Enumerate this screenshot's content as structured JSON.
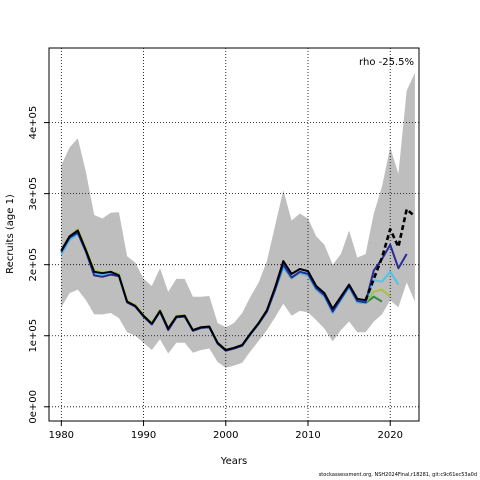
{
  "chart_data": {
    "type": "line",
    "xlabel": "Years",
    "ylabel": "Recruits (age 1)",
    "annotation": "rho -25.5%",
    "footnote": "stockassessment.org, NSH2024Final,r18281, git:c9c61ec53a0d",
    "xlim": [
      1978.5,
      2023.5
    ],
    "ylim": [
      -20000,
      505000
    ],
    "x_ticks": [
      1980,
      1990,
      2000,
      2010,
      2020
    ],
    "y_ticks": [
      0,
      100000,
      200000,
      300000,
      400000
    ],
    "y_tick_labels": [
      "0e+00",
      "1e+05",
      "2e+05",
      "3e+05",
      "4e+05"
    ],
    "grid": true,
    "confidence_band": {
      "x": [
        1980,
        1981,
        1982,
        1983,
        1984,
        1985,
        1986,
        1987,
        1988,
        1989,
        1990,
        1991,
        1992,
        1993,
        1994,
        1995,
        1996,
        1997,
        1998,
        1999,
        2000,
        2001,
        2002,
        2003,
        2004,
        2005,
        2006,
        2007,
        2008,
        2009,
        2010,
        2011,
        2012,
        2013,
        2014,
        2015,
        2016,
        2017,
        2018,
        2019,
        2020,
        2021,
        2022,
        2023
      ],
      "upper": [
        340000,
        365000,
        378000,
        330000,
        270000,
        265000,
        273000,
        274000,
        212000,
        203000,
        180000,
        170000,
        195000,
        162000,
        180000,
        180000,
        155000,
        155000,
        156000,
        118000,
        112000,
        118000,
        132000,
        155000,
        175000,
        205000,
        255000,
        305000,
        262000,
        272000,
        265000,
        240000,
        228000,
        200000,
        215000,
        248000,
        210000,
        215000,
        272000,
        310000,
        365000,
        328000,
        445000,
        470000
      ],
      "lower": [
        140000,
        160000,
        165000,
        150000,
        130000,
        130000,
        132000,
        125000,
        105000,
        100000,
        90000,
        80000,
        95000,
        75000,
        90000,
        90000,
        76000,
        80000,
        82000,
        63000,
        55000,
        58000,
        62000,
        78000,
        93000,
        108000,
        126000,
        145000,
        128000,
        135000,
        133000,
        122000,
        110000,
        92000,
        108000,
        120000,
        105000,
        105000,
        120000,
        130000,
        150000,
        140000,
        175000,
        148000
      ]
    },
    "series": [
      {
        "color": "#000000",
        "x": [
          1980,
          1981,
          1982,
          1983,
          1984,
          1985,
          1986,
          1987,
          1988,
          1989,
          1990,
          1991,
          1992,
          1993,
          1994,
          1995,
          1996,
          1997,
          1998,
          1999,
          2000,
          2001,
          2002,
          2003,
          2004,
          2005,
          2006,
          2007,
          2008,
          2009,
          2010,
          2011,
          2012,
          2013,
          2014,
          2015,
          2016,
          2017,
          2018,
          2019,
          2020,
          2021,
          2022,
          2023
        ],
        "values": [
          220000,
          240000,
          248000,
          220000,
          190000,
          188000,
          190000,
          185000,
          148000,
          142000,
          128000,
          117000,
          135000,
          110000,
          127000,
          128000,
          108000,
          112000,
          113000,
          90000,
          80000,
          83000,
          87000,
          103000,
          118000,
          136000,
          168000,
          205000,
          187000,
          194000,
          191000,
          170000,
          160000,
          138000,
          155000,
          172000,
          152000,
          150000,
          180000,
          210000,
          250000,
          225000,
          278000,
          268000
        ],
        "dashed_from": 2017
      },
      {
        "color": "#2a2a9a",
        "x": [
          1980,
          1981,
          1982,
          1983,
          1984,
          1985,
          1986,
          1987,
          1988,
          1989,
          1990,
          1991,
          1992,
          1993,
          1994,
          1995,
          1996,
          1997,
          1998,
          1999,
          2000,
          2001,
          2002,
          2003,
          2004,
          2005,
          2006,
          2007,
          2008,
          2009,
          2010,
          2011,
          2012,
          2013,
          2014,
          2015,
          2016,
          2017,
          2018,
          2019,
          2020,
          2021,
          2022
        ],
        "values": [
          218000,
          238000,
          245000,
          218000,
          185000,
          183000,
          186000,
          184000,
          147000,
          141000,
          127000,
          116000,
          134000,
          108000,
          126000,
          127000,
          107000,
          111000,
          112000,
          89000,
          79000,
          82000,
          86000,
          102000,
          117000,
          134000,
          165000,
          200000,
          182000,
          190000,
          187000,
          167000,
          157000,
          134000,
          152000,
          170000,
          149000,
          147000,
          192000,
          208000,
          228000,
          195000,
          215000
        ]
      },
      {
        "color": "#4fc3e8",
        "x": [
          1980,
          1981,
          1982,
          1983,
          1984,
          1985,
          1986,
          1987,
          1988,
          1989,
          1990,
          1991,
          1992,
          1993,
          1994,
          1995,
          1996,
          1997,
          1998,
          1999,
          2000,
          2001,
          2002,
          2003,
          2004,
          2005,
          2006,
          2007,
          2008,
          2009,
          2010,
          2011,
          2012,
          2013,
          2014,
          2015,
          2016,
          2017,
          2018,
          2019,
          2020,
          2021
        ],
        "values": [
          214000,
          235000,
          243000,
          218000,
          187000,
          186000,
          188000,
          186000,
          147000,
          141000,
          127000,
          116000,
          134000,
          109000,
          126000,
          127000,
          107000,
          111000,
          112000,
          89000,
          79000,
          82000,
          86000,
          102000,
          117000,
          134000,
          164000,
          196000,
          181000,
          188000,
          185000,
          165000,
          155000,
          132000,
          150000,
          168000,
          147000,
          146000,
          178000,
          176000,
          190000,
          172000
        ]
      },
      {
        "color": "#a8c23a",
        "x": [
          1980,
          1981,
          1982,
          1983,
          1984,
          1985,
          1986,
          1987,
          1988,
          1989,
          1990,
          1991,
          1992,
          1993,
          1994,
          1995,
          1996,
          1997,
          1998,
          1999,
          2000,
          2001,
          2002,
          2003,
          2004,
          2005,
          2006,
          2007,
          2008,
          2009,
          2010,
          2011,
          2012,
          2013,
          2014,
          2015,
          2016,
          2017,
          2018,
          2019,
          2020
        ],
        "values": [
          220000,
          240000,
          250000,
          222000,
          192000,
          189000,
          190000,
          187000,
          149000,
          143000,
          129000,
          118000,
          136000,
          111000,
          128000,
          129000,
          108000,
          112000,
          113000,
          90000,
          80000,
          83000,
          87000,
          103000,
          118000,
          135000,
          165000,
          197000,
          182000,
          189000,
          186000,
          166000,
          156000,
          136000,
          152000,
          168000,
          148000,
          147000,
          162000,
          165000,
          155000
        ]
      },
      {
        "color": "#2e8b3a",
        "x": [
          1980,
          1981,
          1982,
          1983,
          1984,
          1985,
          1986,
          1987,
          1988,
          1989,
          1990,
          1991,
          1992,
          1993,
          1994,
          1995,
          1996,
          1997,
          1998,
          1999,
          2000,
          2001,
          2002,
          2003,
          2004,
          2005,
          2006,
          2007,
          2008,
          2009,
          2010,
          2011,
          2012,
          2013,
          2014,
          2015,
          2016,
          2017,
          2018,
          2019
        ],
        "values": [
          219000,
          239000,
          247000,
          220000,
          189000,
          187000,
          188000,
          186000,
          148000,
          142000,
          128000,
          117000,
          135000,
          110000,
          127000,
          128000,
          107000,
          111000,
          112000,
          89000,
          79000,
          82000,
          86000,
          102000,
          117000,
          134000,
          164000,
          196000,
          181000,
          188000,
          185000,
          165000,
          155000,
          135000,
          152000,
          168000,
          147000,
          146000,
          155000,
          148000
        ]
      }
    ]
  }
}
